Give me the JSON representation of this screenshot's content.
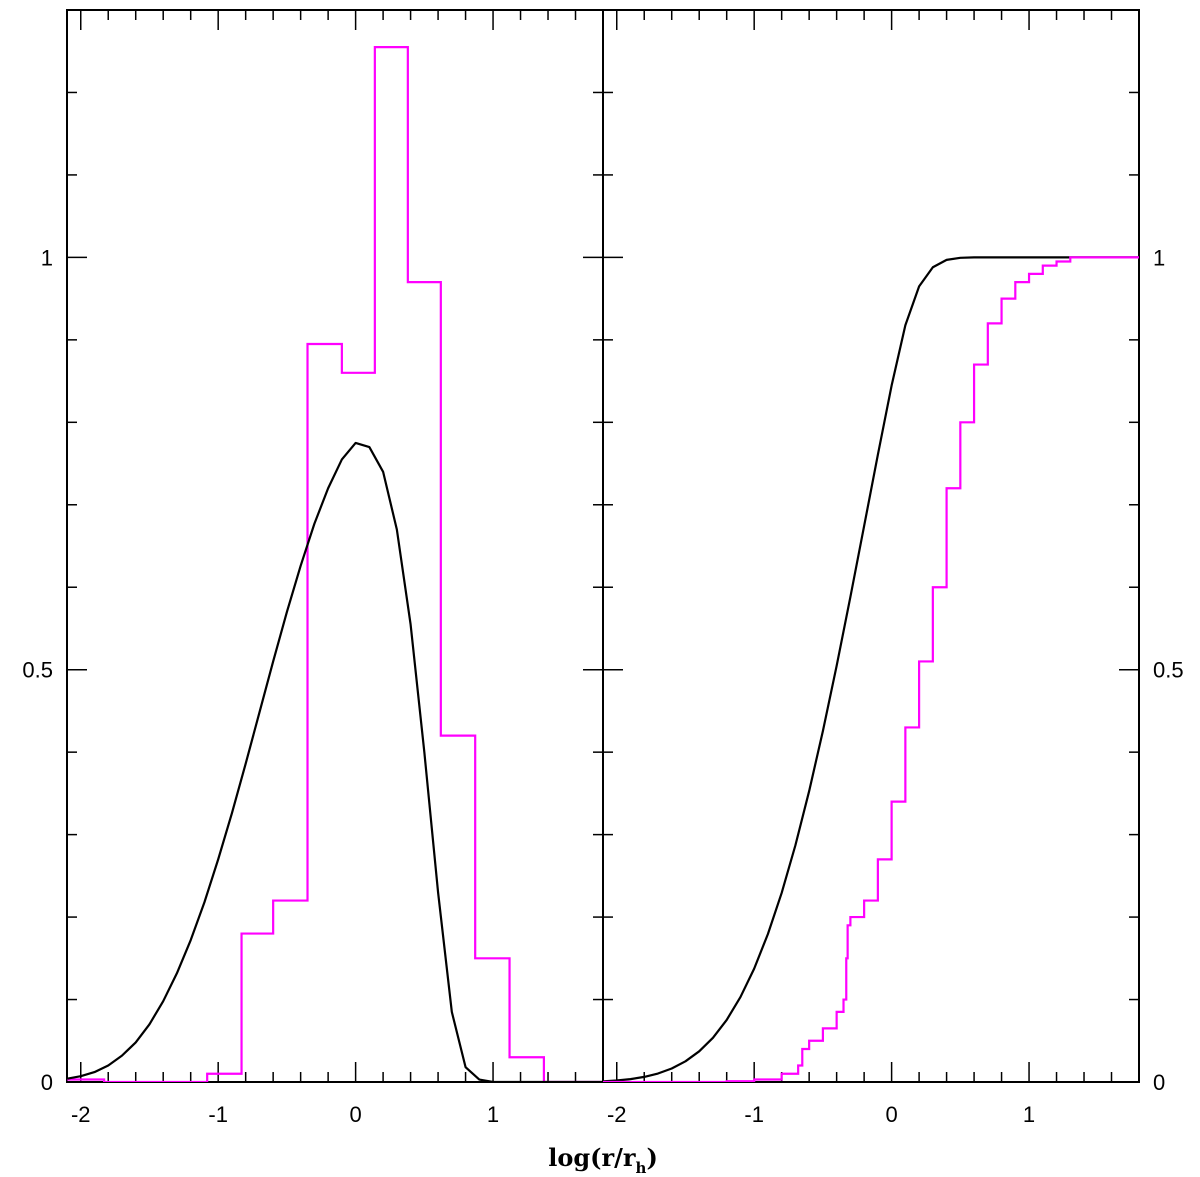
{
  "chart_data": [
    {
      "panel": "left",
      "type": "line",
      "xlabel": "log(r/r",
      "xlabel_sub": "h",
      "xlabel_close": ")",
      "xlim": [
        -2.1,
        1.8
      ],
      "ylim": [
        0,
        1.3
      ],
      "x_ticks": [
        -2,
        -1,
        0,
        1
      ],
      "x_tick_labels": [
        "-2",
        "-1",
        "0",
        "1"
      ],
      "y_ticks": [
        0,
        0.5,
        1
      ],
      "y_tick_labels": [
        "0",
        "0.5",
        "1"
      ],
      "grid": false,
      "series": [
        {
          "kind": "histogram",
          "color": "#ff00ff",
          "edges": [
            -2.1,
            -1.83,
            -1.58,
            -1.33,
            -1.08,
            -0.83,
            -0.6,
            -0.35,
            -0.1,
            0.14,
            0.38,
            0.62,
            0.87,
            1.12,
            1.37,
            1.8
          ],
          "values": [
            0.003,
            0.0,
            0.0,
            0.0,
            0.01,
            0.18,
            0.22,
            0.895,
            0.86,
            1.255,
            0.97,
            0.42,
            0.15,
            0.03,
            0.0
          ]
        },
        {
          "kind": "curve",
          "color": "#000000",
          "x": [
            -2.1,
            -2.0,
            -1.9,
            -1.8,
            -1.7,
            -1.6,
            -1.5,
            -1.4,
            -1.3,
            -1.2,
            -1.1,
            -1.0,
            -0.9,
            -0.8,
            -0.7,
            -0.6,
            -0.5,
            -0.4,
            -0.3,
            -0.2,
            -0.1,
            0.0,
            0.1,
            0.2,
            0.3,
            0.4,
            0.5,
            0.6,
            0.7,
            0.8,
            0.9,
            1.0,
            1.1,
            1.2,
            1.3,
            1.4,
            1.5,
            1.6,
            1.7,
            1.8
          ],
          "y": [
            0.004,
            0.007,
            0.012,
            0.02,
            0.032,
            0.048,
            0.07,
            0.098,
            0.132,
            0.172,
            0.218,
            0.27,
            0.326,
            0.386,
            0.448,
            0.51,
            0.57,
            0.626,
            0.677,
            0.72,
            0.755,
            0.775,
            0.77,
            0.74,
            0.67,
            0.555,
            0.4,
            0.23,
            0.085,
            0.018,
            0.003,
            0.0,
            0.0,
            0.0,
            0.0,
            0.0,
            0.0,
            0.0,
            0.0,
            0.0
          ]
        }
      ]
    },
    {
      "panel": "right",
      "type": "line",
      "xlim": [
        -2.1,
        1.8
      ],
      "ylim": [
        0,
        1.3
      ],
      "x_ticks": [
        -2,
        -1,
        0,
        1
      ],
      "x_tick_labels": [
        "-2",
        "-1",
        "0",
        "1"
      ],
      "y_ticks": [
        0,
        0.5,
        1
      ],
      "y_tick_labels": [
        "0",
        "0.5",
        "1"
      ],
      "grid": false,
      "series": [
        {
          "kind": "curve",
          "color": "#000000",
          "x": [
            -2.1,
            -2.0,
            -1.9,
            -1.8,
            -1.7,
            -1.6,
            -1.5,
            -1.4,
            -1.3,
            -1.2,
            -1.1,
            -1.0,
            -0.9,
            -0.8,
            -0.7,
            -0.6,
            -0.5,
            -0.4,
            -0.3,
            -0.2,
            -0.1,
            0.0,
            0.1,
            0.2,
            0.3,
            0.4,
            0.5,
            0.6,
            0.7,
            0.8,
            0.9,
            1.0,
            1.2,
            1.5,
            1.8
          ],
          "y": [
            0.0008,
            0.0018,
            0.0035,
            0.0062,
            0.0103,
            0.0164,
            0.0251,
            0.0372,
            0.0536,
            0.0753,
            0.103,
            0.1375,
            0.1795,
            0.2293,
            0.2871,
            0.3528,
            0.4257,
            0.5047,
            0.5882,
            0.6743,
            0.7607,
            0.8446,
            0.9177,
            0.9648,
            0.988,
            0.997,
            0.9995,
            1.0,
            1.0,
            1.0,
            1.0,
            1.0,
            1.0,
            1.0,
            1.0
          ]
        },
        {
          "kind": "step",
          "color": "#ff00ff",
          "x": [
            -2.1,
            -1.8,
            -1.5,
            -1.2,
            -1.0,
            -0.8,
            -0.68,
            -0.65,
            -0.6,
            -0.5,
            -0.4,
            -0.35,
            -0.33,
            -0.32,
            -0.3,
            -0.2,
            -0.1,
            0.0,
            0.1,
            0.2,
            0.3,
            0.4,
            0.5,
            0.6,
            0.7,
            0.8,
            0.9,
            1.0,
            1.1,
            1.2,
            1.3,
            1.5,
            1.8
          ],
          "y": [
            0.0,
            0.0,
            0.0,
            0.001,
            0.003,
            0.01,
            0.02,
            0.04,
            0.05,
            0.065,
            0.085,
            0.1,
            0.15,
            0.19,
            0.2,
            0.22,
            0.27,
            0.34,
            0.43,
            0.51,
            0.6,
            0.72,
            0.8,
            0.87,
            0.92,
            0.95,
            0.97,
            0.98,
            0.99,
            0.995,
            1.0,
            1.0,
            1.0
          ]
        }
      ]
    }
  ]
}
